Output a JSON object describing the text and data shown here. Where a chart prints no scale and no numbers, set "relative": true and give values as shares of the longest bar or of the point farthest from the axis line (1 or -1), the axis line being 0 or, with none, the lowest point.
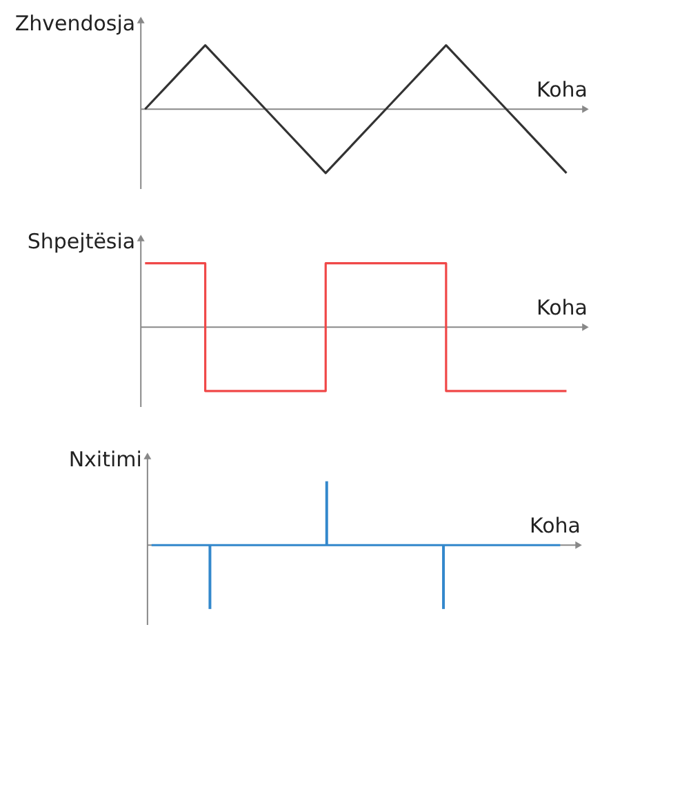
{
  "chart_data": [
    {
      "type": "line",
      "relative": true,
      "ylabel": "Zhvendosja",
      "xlabel": "Koha",
      "categories": [
        null,
        null,
        null,
        null,
        null,
        null,
        null,
        null
      ],
      "series": [
        {
          "color": "#333333",
          "values": [
            0,
            1,
            0,
            -1,
            0,
            1,
            0,
            -1
          ]
        }
      ]
    },
    {
      "type": "step",
      "relative": true,
      "ylabel": "Shpejtësia",
      "xlabel": "Koha",
      "categories": [
        null,
        null,
        null,
        null,
        null,
        null,
        null,
        null
      ],
      "series": [
        {
          "color": "#f04848",
          "values": [
            1,
            -1,
            -1,
            1,
            1,
            -1,
            -1,
            -1
          ]
        }
      ]
    },
    {
      "type": "bar",
      "relative": true,
      "ylabel": "Nxitimi",
      "xlabel": "Koha",
      "categories": [
        null,
        null,
        null,
        null,
        null,
        null,
        null,
        null
      ],
      "series": [
        {
          "color": "#3388cc",
          "values": [
            0,
            -1,
            0,
            1,
            0,
            -1,
            0,
            0
          ]
        }
      ],
      "ref_lines": [
        {
          "axis": "y",
          "value": 0,
          "color": "#3388cc"
        }
      ]
    }
  ]
}
